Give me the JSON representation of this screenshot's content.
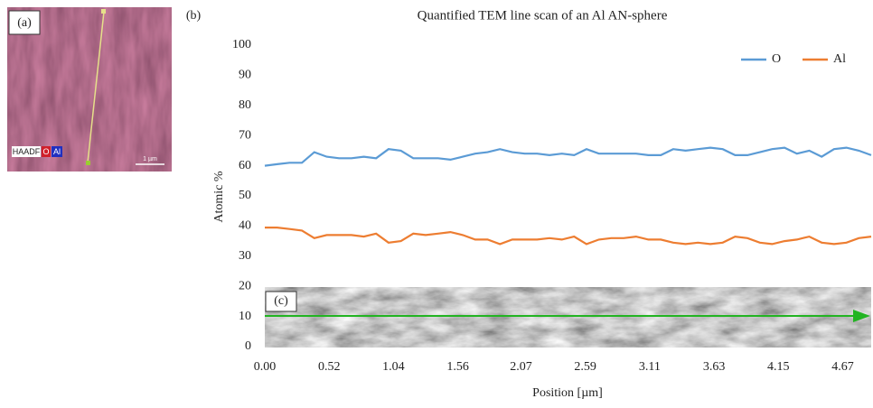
{
  "chart_data": {
    "type": "line",
    "title": "Quantified TEM line scan of an Al AN-sphere",
    "xlabel": "Position [µm]",
    "ylabel": "Atomic %",
    "x": [
      0.0,
      0.1,
      0.2,
      0.3,
      0.4,
      0.5,
      0.6,
      0.7,
      0.8,
      0.9,
      1.0,
      1.1,
      1.2,
      1.3,
      1.4,
      1.5,
      1.6,
      1.7,
      1.8,
      1.9,
      2.0,
      2.1,
      2.2,
      2.3,
      2.4,
      2.5,
      2.6,
      2.7,
      2.8,
      2.9,
      3.0,
      3.1,
      3.2,
      3.3,
      3.4,
      3.5,
      3.6,
      3.7,
      3.8,
      3.9,
      4.0,
      4.1,
      4.2,
      4.3,
      4.4,
      4.5,
      4.6,
      4.7,
      4.8,
      4.9
    ],
    "series": [
      {
        "name": "O",
        "color": "#5b9bd5",
        "values": [
          60,
          60.5,
          61,
          61,
          64.5,
          63,
          62.5,
          62.5,
          63,
          62.5,
          65.5,
          65,
          62.5,
          62.5,
          62.5,
          62,
          63,
          64,
          64.5,
          65.5,
          64.5,
          64,
          64,
          63.5,
          64,
          63.5,
          65.5,
          64,
          64,
          64,
          64,
          63.5,
          63.5,
          65.5,
          65,
          65.5,
          66,
          65.5,
          63.5,
          63.5,
          64.5,
          65.5,
          66,
          64,
          65,
          63,
          65.5,
          66,
          65,
          63.5
        ]
      },
      {
        "name": "Al",
        "color": "#ed7d31",
        "values": [
          39.5,
          39.5,
          39,
          38.5,
          36,
          37,
          37,
          37,
          36.5,
          37.5,
          34.5,
          35,
          37.5,
          37,
          37.5,
          38,
          37,
          35.5,
          35.5,
          34,
          35.5,
          35.5,
          35.5,
          36,
          35.5,
          36.5,
          34,
          35.5,
          36,
          36,
          36.5,
          35.5,
          35.5,
          34.5,
          34,
          34.5,
          34,
          34.5,
          36.5,
          36,
          34.5,
          34,
          35,
          35.5,
          36.5,
          34.5,
          34,
          34.5,
          36,
          36.5
        ]
      }
    ],
    "xlim": [
      0,
      4.9
    ],
    "xticks": [
      {
        "value": 0,
        "label": "0.00"
      },
      0.52,
      1.04,
      1.56,
      2.07,
      2.59,
      3.11,
      3.63,
      4.15,
      4.67
    ],
    "ylim": [
      0,
      100
    ],
    "yticks": [
      0,
      10,
      20,
      30,
      40,
      50,
      60,
      70,
      80,
      90,
      100
    ],
    "grid": false,
    "legend": "upper right"
  },
  "panel_labels": [
    "(a)",
    "(b)",
    "(c)"
  ],
  "image_a": {
    "detector": "HAADF",
    "elements": [
      "O",
      "Al"
    ],
    "scale_bar": "1 µm"
  }
}
